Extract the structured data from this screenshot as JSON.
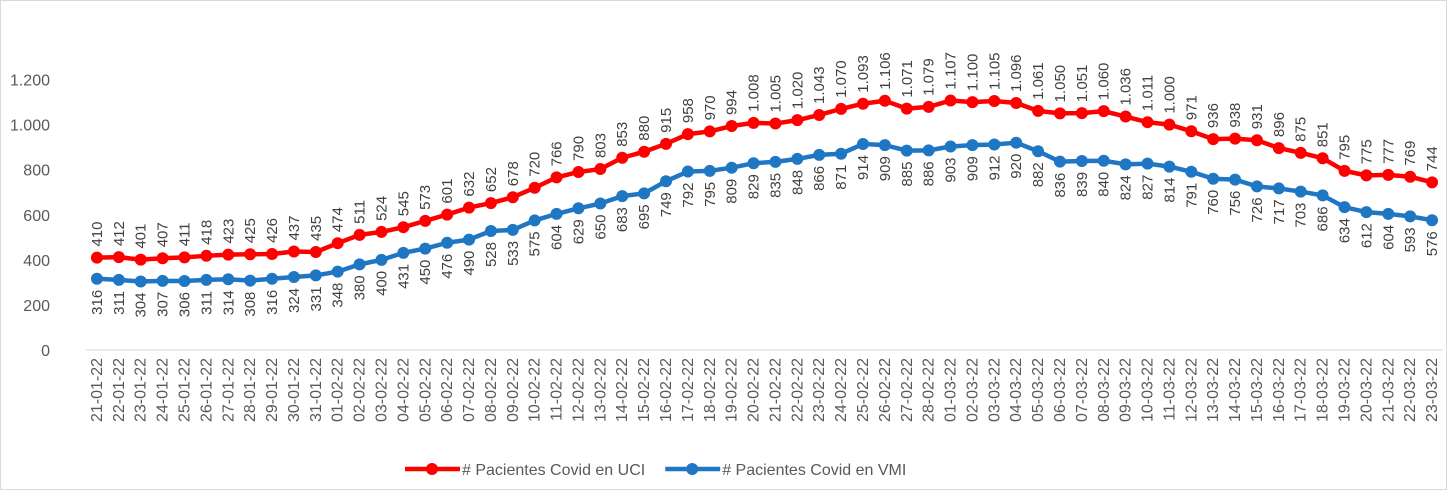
{
  "chart_data": {
    "type": "line",
    "categories": [
      "21-01-22",
      "22-01-22",
      "23-01-22",
      "24-01-22",
      "25-01-22",
      "26-01-22",
      "27-01-22",
      "28-01-22",
      "29-01-22",
      "30-01-22",
      "31-01-22",
      "01-02-22",
      "02-02-22",
      "03-02-22",
      "04-02-22",
      "05-02-22",
      "06-02-22",
      "07-02-22",
      "08-02-22",
      "09-02-22",
      "10-02-22",
      "11-02-22",
      "12-02-22",
      "13-02-22",
      "14-02-22",
      "15-02-22",
      "16-02-22",
      "17-02-22",
      "18-02-22",
      "19-02-22",
      "20-02-22",
      "21-02-22",
      "22-02-22",
      "23-02-22",
      "24-02-22",
      "25-02-22",
      "26-02-22",
      "27-02-22",
      "28-02-22",
      "01-03-22",
      "02-03-22",
      "03-03-22",
      "04-03-22",
      "05-03-22",
      "06-03-22",
      "07-03-22",
      "08-03-22",
      "09-03-22",
      "10-03-22",
      "11-03-22",
      "12-03-22",
      "13-03-22",
      "14-03-22",
      "15-03-22",
      "16-03-22",
      "17-03-22",
      "18-03-22",
      "19-03-22",
      "20-03-22",
      "21-03-22",
      "22-03-22",
      "23-03-22"
    ],
    "series": [
      {
        "name": "# Pacientes Covid en UCI",
        "color": "#ff0000",
        "values": [
          410,
          412,
          401,
          407,
          411,
          418,
          423,
          425,
          426,
          437,
          435,
          474,
          511,
          524,
          545,
          573,
          601,
          632,
          652,
          678,
          720,
          766,
          790,
          803,
          853,
          880,
          915,
          958,
          970,
          994,
          1008,
          1005,
          1020,
          1043,
          1070,
          1093,
          1106,
          1071,
          1079,
          1107,
          1100,
          1105,
          1096,
          1061,
          1050,
          1051,
          1060,
          1036,
          1011,
          1000,
          971,
          936,
          938,
          931,
          896,
          875,
          851,
          795,
          775,
          777,
          769,
          744
        ],
        "value_labels": [
          "410",
          "412",
          "401",
          "407",
          "411",
          "418",
          "423",
          "425",
          "426",
          "437",
          "435",
          "474",
          "511",
          "524",
          "545",
          "573",
          "601",
          "632",
          "652",
          "678",
          "720",
          "766",
          "790",
          "803",
          "853",
          "880",
          "915",
          "958",
          "970",
          "994",
          "1.008",
          "1.005",
          "1.020",
          "1.043",
          "1.070",
          "1.093",
          "1.106",
          "1.071",
          "1.079",
          "1.107",
          "1.100",
          "1.105",
          "1.096",
          "1.061",
          "1.050",
          "1.051",
          "1.060",
          "1.036",
          "1.011",
          "1.000",
          "971",
          "936",
          "938",
          "931",
          "896",
          "875",
          "851",
          "795",
          "775",
          "777",
          "769",
          "744"
        ]
      },
      {
        "name": "# Pacientes Covid en VMI",
        "color": "#1f77c4",
        "values": [
          316,
          311,
          304,
          307,
          306,
          311,
          314,
          308,
          316,
          324,
          331,
          348,
          380,
          400,
          431,
          450,
          476,
          490,
          528,
          533,
          575,
          604,
          629,
          650,
          683,
          695,
          749,
          792,
          795,
          809,
          829,
          835,
          848,
          866,
          871,
          914,
          909,
          885,
          886,
          903,
          909,
          912,
          920,
          882,
          836,
          839,
          840,
          824,
          827,
          814,
          791,
          760,
          756,
          726,
          717,
          703,
          686,
          634,
          612,
          604,
          593,
          576
        ]
      }
    ],
    "ylim": [
      0,
      1500
    ],
    "yticks": [
      0,
      200,
      400,
      600,
      800,
      {
        "value": 1000,
        "label": "1.000"
      },
      {
        "value": 1200,
        "label": "1.200"
      }
    ]
  }
}
